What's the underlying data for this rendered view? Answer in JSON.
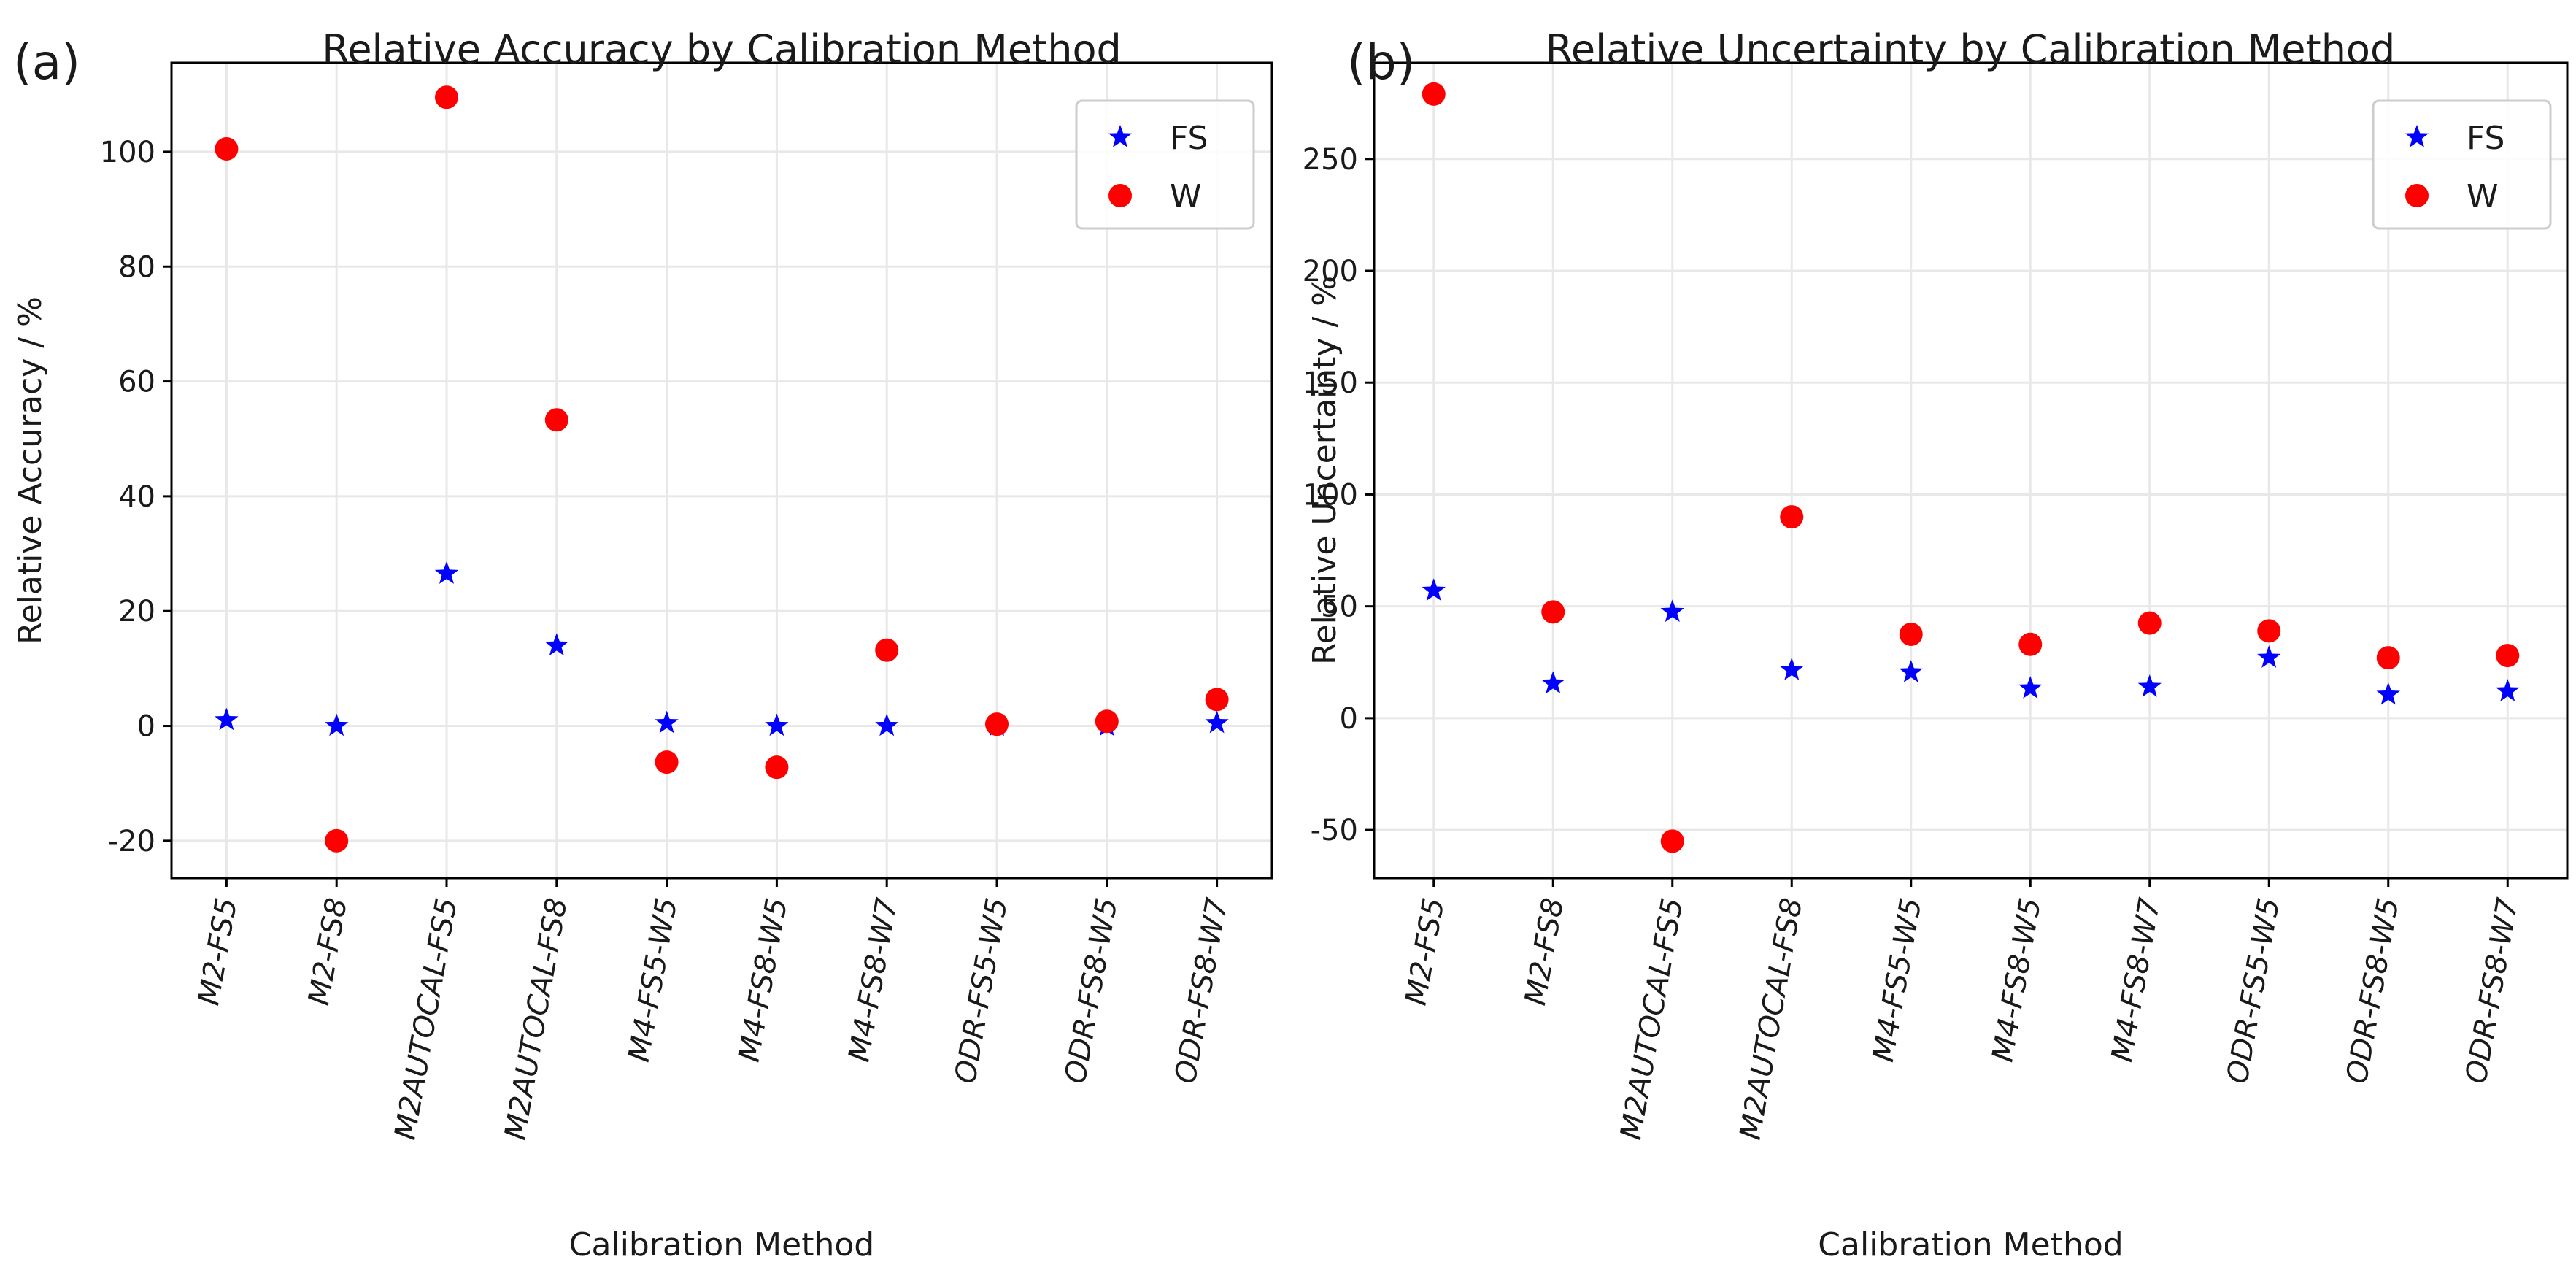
{
  "chart_data": [
    {
      "type": "scatter",
      "panel_label": "(a)",
      "title": "Relative Accuracy by Calibration Method",
      "xlabel": "Calibration Method",
      "ylabel": "Relative Accuracy / %",
      "categories": [
        "M2-FS5",
        "M2-FS8",
        "M2AUTOCAL-FS5",
        "M2AUTOCAL-FS8",
        "M4-FS5-W5",
        "M4-FS8-W5",
        "M4-FS8-W7",
        "ODR-FS5-W5",
        "ODR-FS8-W5",
        "ODR-FS8-W7"
      ],
      "yticks": [
        -20,
        0,
        20,
        40,
        60,
        80,
        100
      ],
      "ylim": [
        -26.5,
        115.5
      ],
      "grid": true,
      "legend": "top-right",
      "series": [
        {
          "name": "FS",
          "marker": "star",
          "color": "#0000ff",
          "values": [
            1,
            0,
            26.5,
            14,
            0.5,
            0,
            0,
            0,
            0,
            0.5
          ]
        },
        {
          "name": "W",
          "marker": "circle",
          "color": "#ff0000",
          "values": [
            100.5,
            -20,
            109.5,
            53.3,
            -6.3,
            -7.2,
            13.2,
            0.3,
            0.8,
            4.6
          ]
        }
      ]
    },
    {
      "type": "scatter",
      "panel_label": "(b)",
      "title": "Relative Uncertainty by Calibration Method",
      "xlabel": "Calibration Method",
      "ylabel": "Relative Uncertainty / %",
      "categories": [
        "M2-FS5",
        "M2-FS8",
        "M2AUTOCAL-FS5",
        "M2AUTOCAL-FS8",
        "M4-FS5-W5",
        "M4-FS8-W5",
        "M4-FS8-W7",
        "ODR-FS5-W5",
        "ODR-FS8-W5",
        "ODR-FS8-W7"
      ],
      "yticks": [
        -50,
        0,
        50,
        100,
        150,
        200,
        250
      ],
      "ylim": [
        -71.5,
        293
      ],
      "grid": true,
      "legend": "top-right",
      "series": [
        {
          "name": "FS",
          "marker": "star",
          "color": "#0000ff",
          "values": [
            57,
            15.5,
            47.5,
            21.5,
            20.5,
            13.3,
            14,
            27,
            10.5,
            12
          ]
        },
        {
          "name": "W",
          "marker": "circle",
          "color": "#ff0000",
          "values": [
            279,
            47.5,
            -55,
            90,
            37.5,
            33,
            42.5,
            39,
            27,
            28
          ]
        }
      ]
    }
  ]
}
